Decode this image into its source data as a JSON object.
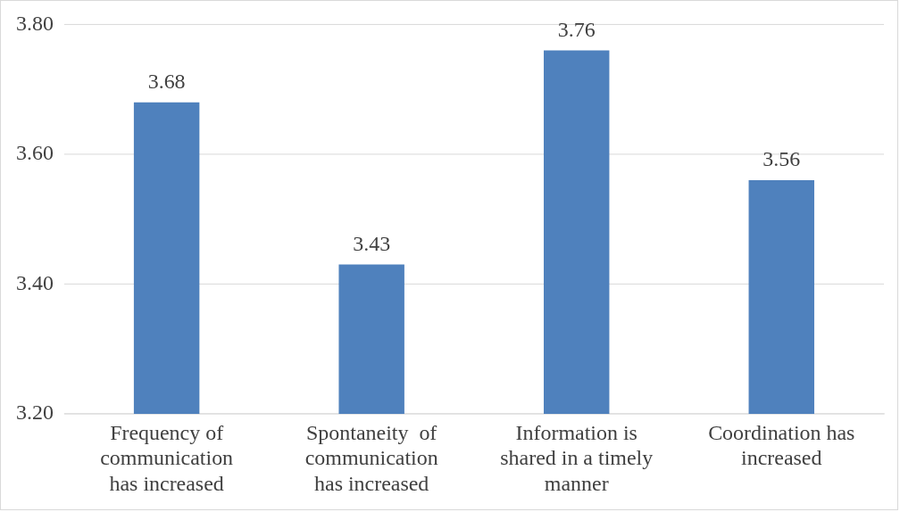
{
  "chart_data": {
    "type": "bar",
    "categories": [
      "Frequency of communication has increased",
      "Spontaneity  of communication has increased",
      "Information is shared in a timely manner",
      "Coordination has increased"
    ],
    "values": [
      3.68,
      3.43,
      3.76,
      3.56
    ],
    "color": "#4f81bd",
    "ylim": [
      3.2,
      3.8
    ],
    "yticks": [
      {
        "value": 3.2,
        "label": "3.20"
      },
      {
        "value": 3.4,
        "label": "3.40"
      },
      {
        "value": 3.6,
        "label": "3.60"
      },
      {
        "value": 3.8,
        "label": "3.80"
      }
    ],
    "grid": "y",
    "data_labels": true,
    "legend": false
  }
}
